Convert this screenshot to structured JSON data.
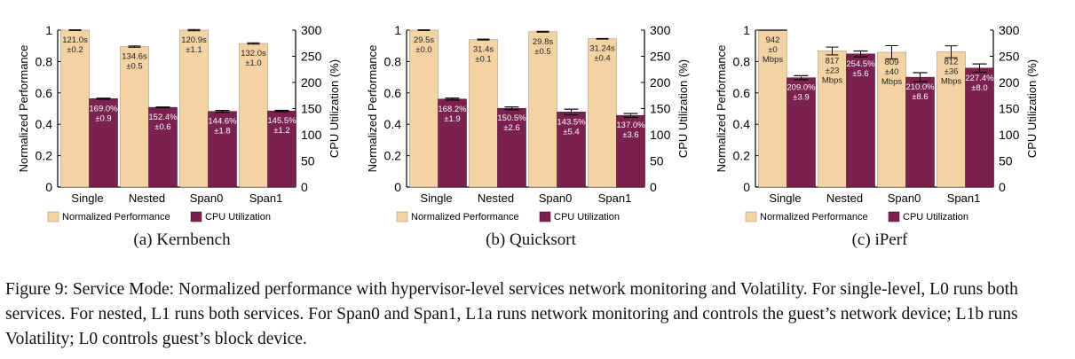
{
  "colors": {
    "perf": "#f3d3a4",
    "cpu": "#7b2150",
    "axis": "#000000"
  },
  "chart_data": [
    {
      "type": "bar",
      "subcaption": "(a) Kernbench",
      "categories": [
        "Single",
        "Nested",
        "Span0",
        "Span1"
      ],
      "ylabel": "Normalized Performance",
      "y2label": "CPU Utilization (%)",
      "ylim": [
        0,
        1
      ],
      "y2lim": [
        0,
        300
      ],
      "yticks": [
        "0",
        "0.2",
        "0.4",
        "0.6",
        "0.8",
        "1"
      ],
      "y2ticks": [
        "0",
        "50",
        "100",
        "150",
        "200",
        "250",
        "300"
      ],
      "legend": [
        "Normalized Performance",
        "CPU Utilization"
      ],
      "series": [
        {
          "name": "Normalized Performance",
          "axis": "left",
          "values": [
            1.0,
            0.895,
            1.0,
            0.915
          ],
          "errors": [
            0.002,
            0.004,
            0.004,
            0.004
          ],
          "labels": [
            [
              "121.0s",
              "±0.2"
            ],
            [
              "134.6s",
              "±0.5"
            ],
            [
              "120.9s",
              "±1.1"
            ],
            [
              "132.0s",
              "±1.0"
            ]
          ]
        },
        {
          "name": "CPU Utilization",
          "axis": "right",
          "values": [
            169.0,
            152.4,
            144.6,
            145.5
          ],
          "errors": [
            0.9,
            0.6,
            1.8,
            1.2
          ],
          "labels": [
            [
              "169.0%",
              "±0.9"
            ],
            [
              "152.4%",
              "±0.6"
            ],
            [
              "144.6%",
              "±1.8"
            ],
            [
              "145.5%",
              "±1.2"
            ]
          ]
        }
      ]
    },
    {
      "type": "bar",
      "subcaption": "(b) Quicksort",
      "categories": [
        "Single",
        "Nested",
        "Span0",
        "Span1"
      ],
      "ylabel": "Normalized Performance",
      "y2label": "CPU Utilization (%)",
      "ylim": [
        0,
        1
      ],
      "y2lim": [
        0,
        300
      ],
      "yticks": [
        "0",
        "0.2",
        "0.4",
        "0.6",
        "0.8",
        "1"
      ],
      "y2ticks": [
        "0",
        "50",
        "100",
        "150",
        "200",
        "250",
        "300"
      ],
      "legend": [
        "Normalized Performance",
        "CPU Utilization"
      ],
      "series": [
        {
          "name": "Normalized Performance",
          "axis": "left",
          "values": [
            1.0,
            0.94,
            0.99,
            0.945
          ],
          "errors": [
            0.002,
            0.003,
            0.003,
            0.002
          ],
          "labels": [
            [
              "29.5s",
              "±0.0"
            ],
            [
              "31.4s",
              "±0.1"
            ],
            [
              "29.8s",
              "±0.5"
            ],
            [
              "31.24s",
              "±0.4"
            ]
          ]
        },
        {
          "name": "CPU Utilization",
          "axis": "right",
          "values": [
            168.2,
            150.5,
            143.5,
            137.0
          ],
          "errors": [
            1.9,
            2.6,
            5.4,
            3.6
          ],
          "labels": [
            [
              "168.2%",
              "±1.9"
            ],
            [
              "150.5%",
              "±2.6"
            ],
            [
              "143.5%",
              "±5.4"
            ],
            [
              "137.0%",
              "±3.6"
            ]
          ]
        }
      ]
    },
    {
      "type": "bar",
      "subcaption": "(c) iPerf",
      "categories": [
        "Single",
        "Nested",
        "Span0",
        "Span1"
      ],
      "ylabel": "Normalized Performance",
      "y2label": "CPU Utilization (%)",
      "ylim": [
        0,
        1
      ],
      "y2lim": [
        0,
        300
      ],
      "yticks": [
        "0",
        "0.2",
        "0.4",
        "0.6",
        "0.8",
        "1"
      ],
      "y2ticks": [
        "0",
        "50",
        "100",
        "150",
        "200",
        "250",
        "300"
      ],
      "legend": [
        "Normalized Performance",
        "CPU Utilization"
      ],
      "series": [
        {
          "name": "Normalized Performance",
          "axis": "left",
          "values": [
            1.0,
            0.867,
            0.859,
            0.862
          ],
          "errors": [
            0.0,
            0.025,
            0.042,
            0.038
          ],
          "labels": [
            [
              "942",
              "±0",
              "Mbps"
            ],
            [
              "817",
              "±23",
              "Mbps"
            ],
            [
              "809",
              "±40",
              "Mbps"
            ],
            [
              "812",
              "±36",
              "Mbps"
            ]
          ]
        },
        {
          "name": "CPU Utilization",
          "axis": "right",
          "values": [
            209.0,
            254.5,
            210.0,
            227.4
          ],
          "errors": [
            3.9,
            5.6,
            8.6,
            8.0
          ],
          "labels": [
            [
              "209.0%",
              "±3.9"
            ],
            [
              "254.5%",
              "±5.6"
            ],
            [
              "210.0%",
              "±8.6"
            ],
            [
              "227.4%",
              "±8.0"
            ]
          ]
        }
      ]
    }
  ],
  "figure_caption": "Figure 9: Service Mode: Normalized performance with hypervisor-level services network monitoring and Volatility. For single-level, L0 runs both services. For nested, L1 runs both services. For Span0 and Span1, L1a runs network monitoring and controls the guest’s network device; L1b runs Volatility; L0 controls guest’s block device."
}
